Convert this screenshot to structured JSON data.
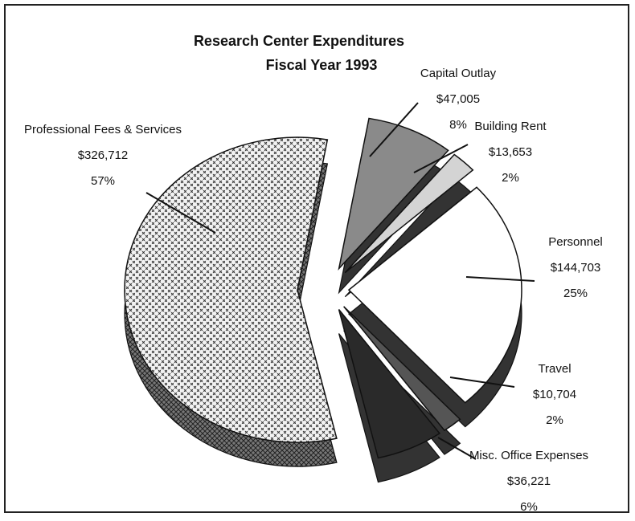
{
  "chart_data": {
    "type": "pie",
    "title": "Research Center Expenditures",
    "subtitle": "Fiscal Year 1993",
    "categories": [
      "Capital Outlay",
      "Building Rent",
      "Personnel",
      "Travel",
      "Misc. Office Expenses",
      "Professional Fees & Services"
    ],
    "values": [
      47005,
      13653,
      144703,
      10704,
      36221,
      326712
    ],
    "value_labels": [
      "$47,005",
      "$13,653",
      "$144,703",
      "$10,704",
      "$36,221",
      "$326,712"
    ],
    "percent_labels": [
      "8%",
      "2%",
      "25%",
      "2%",
      "6%",
      "57%"
    ],
    "colors": [
      "#8a8a8a",
      "#d4d4d4",
      "#ffffff",
      "#555555",
      "#2a2a2a",
      "url(#cross)"
    ]
  }
}
